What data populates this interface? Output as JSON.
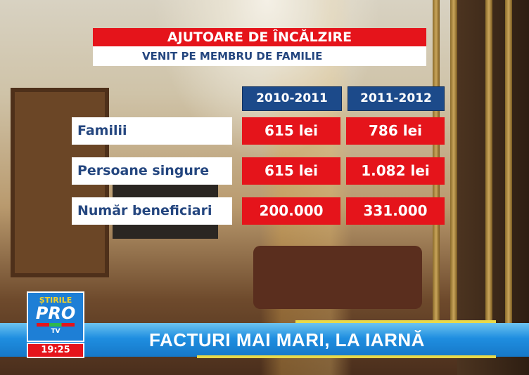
{
  "graphic": {
    "title": "AJUTOARE DE ÎNCĂLZIRE",
    "subtitle": "VENIT PE MEMBRU DE FAMILIE",
    "columns": [
      "2010-2011",
      "2011-2012"
    ],
    "rows": [
      {
        "label": "Familii",
        "values": [
          "615 lei",
          "786 lei"
        ]
      },
      {
        "label": "Persoane singure",
        "values": [
          "615 lei",
          "1.082 lei"
        ]
      },
      {
        "label": "Număr beneficiari",
        "values": [
          "200.000",
          "331.000"
        ]
      }
    ]
  },
  "broadcast": {
    "logo_top": "ȘTIRILE",
    "logo_main": "PRO",
    "logo_sub": "TV",
    "time": "19:25",
    "headline": "FACTURI MAI MARI, LA IARNĂ"
  },
  "colors": {
    "red": "#e5141b",
    "blue": "#1c4a8a",
    "ticker": "#1f8ee0"
  }
}
